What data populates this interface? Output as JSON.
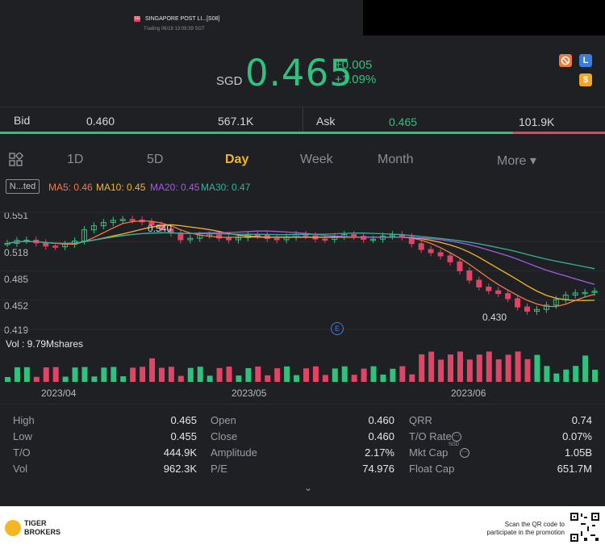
{
  "header": {
    "badge": "SG",
    "name": "SINGAPORE POST LI...[S08]",
    "status": "Trading 06/19 13:09:39 SGT"
  },
  "quote": {
    "currency": "SGD",
    "price": "0.465",
    "change": "+0.005",
    "change_pct": "+1.09%",
    "icons": [
      "hide-icon",
      "level1-icon",
      "dollar-icon"
    ],
    "icon_labels": {
      "level": "L",
      "dollar": "$"
    }
  },
  "bidask": {
    "bid_label": "Bid",
    "bid_price": "0.460",
    "bid_size": "567.1K",
    "ask_label": "Ask",
    "ask_price": "0.465",
    "ask_size": "101.9K"
  },
  "tabs": {
    "items": [
      "1D",
      "5D",
      "Day",
      "Week",
      "Month",
      "More ▾"
    ],
    "active": "Day"
  },
  "indicators": {
    "type_label": "N...ted",
    "ma5": "MA5: 0.46",
    "ma10": "MA10: 0.45",
    "ma20": "MA20: 0.45",
    "ma30": "MA30: 0.47"
  },
  "chart_data": {
    "type": "candlestick",
    "y_ticks": [
      "0.551",
      "0.518",
      "0.485",
      "0.452",
      "0.419"
    ],
    "ylim": [
      0.419,
      0.551
    ],
    "high_marker": "0.540",
    "low_marker": "0.430",
    "event_marker": "E",
    "x_ticks": [
      "2023/04",
      "2023/05",
      "2023/06"
    ],
    "volume_label": "Vol  : 9.79Mshares",
    "colors": {
      "up": "#2ec27e",
      "down": "#e04565",
      "ma5": "#f07a4a",
      "ma10": "#f5b623",
      "ma20": "#a35be0",
      "ma30": "#2fb39a"
    }
  },
  "stats": {
    "col1": [
      {
        "label": "High",
        "value": "0.465"
      },
      {
        "label": "Low",
        "value": "0.455"
      },
      {
        "label": "T/O",
        "value": "444.9K"
      },
      {
        "label": "Vol",
        "value": "962.3K"
      }
    ],
    "col2": [
      {
        "label": "Open",
        "value": "0.460"
      },
      {
        "label": "Close",
        "value": "0.460"
      },
      {
        "label": "Amplitude",
        "value": "2.17%"
      },
      {
        "label": "P/E",
        "value": "74.976"
      }
    ],
    "col3": [
      {
        "label": "QRR",
        "value": "0.74"
      },
      {
        "label": "T/O Rate",
        "value": "0.07%"
      },
      {
        "label": "Mkt Cap",
        "value": "1.05B"
      },
      {
        "label": "Float Cap",
        "value": "651.7M"
      }
    ],
    "mkt_cap_currency": "SGD",
    "expand_icon": "chevron-down-icon"
  },
  "footer": {
    "brand_line1": "TIGER",
    "brand_line2": "BROKERS",
    "promo_line1": "Scan the QR code to",
    "promo_line2": "participate in the promotion"
  }
}
